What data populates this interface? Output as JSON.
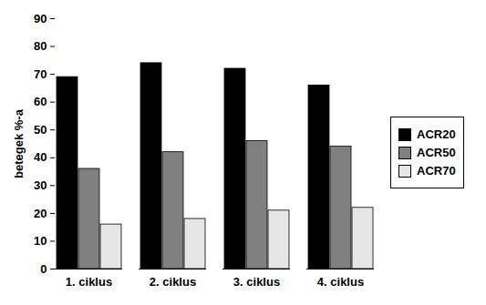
{
  "chart_data": {
    "type": "bar",
    "ylabel": "betegek %-a",
    "categories": [
      "1. ciklus",
      "2. ciklus",
      "3. ciklus",
      "4. ciklus"
    ],
    "series": [
      {
        "name": "ACR20",
        "color": "#000000",
        "values": [
          69,
          74,
          72,
          66
        ]
      },
      {
        "name": "ACR50",
        "color": "#808080",
        "values": [
          36,
          42,
          46,
          44
        ]
      },
      {
        "name": "ACR70",
        "color": "#e6e6e6",
        "values": [
          16,
          18,
          21,
          22
        ]
      }
    ],
    "ylim": [
      0,
      90
    ],
    "yticks": [
      0,
      10,
      20,
      30,
      40,
      50,
      60,
      70,
      80,
      90
    ],
    "legend": "right"
  }
}
